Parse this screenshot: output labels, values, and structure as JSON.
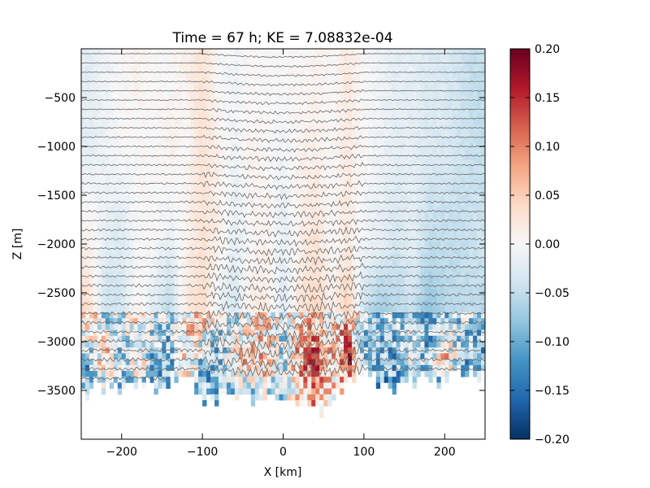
{
  "chart_data": {
    "type": "heatmap",
    "title": "Time = 67 h; KE = 7.08832e-04",
    "xlabel": "X [km]",
    "ylabel": "Z [m]",
    "xlim": [
      -250,
      250
    ],
    "ylim": [
      -4000,
      0
    ],
    "x_ticks": [
      -200,
      -100,
      0,
      100,
      200
    ],
    "x_tick_labels": [
      "−200",
      "−100",
      "0",
      "100",
      "200"
    ],
    "y_ticks": [
      -500,
      -1000,
      -1500,
      -2000,
      -2500,
      -3000,
      -3500
    ],
    "y_tick_labels": [
      "−500",
      "−1000",
      "−1500",
      "−2000",
      "−2500",
      "−3000",
      "−3500"
    ],
    "colorbar": {
      "colormap": "RdBu_r",
      "range": [
        -0.2,
        0.2
      ],
      "ticks": [
        0.2,
        0.15,
        0.1,
        0.05,
        0.0,
        -0.05,
        -0.1,
        -0.15,
        -0.2
      ],
      "tick_labels": [
        "0.20",
        "0.15",
        "0.10",
        "0.05",
        "0.00",
        "−0.05",
        "−0.10",
        "−0.15",
        "−0.20"
      ],
      "colors": [
        "#053061",
        "#2166ac",
        "#4393c3",
        "#92c5de",
        "#d1e5f0",
        "#f7f7f7",
        "#fddbc7",
        "#f4a582",
        "#d6604d",
        "#b2182b",
        "#67001f"
      ]
    },
    "field": {
      "x_centers_km": [
        -240,
        -220,
        -200,
        -180,
        -160,
        -140,
        -120,
        -100,
        -80,
        -60,
        -40,
        -20,
        0,
        20,
        40,
        60,
        80,
        100,
        120,
        140,
        160,
        180,
        200,
        220,
        240
      ],
      "z_levels_m": [
        -250,
        -1000,
        -2000,
        -2800,
        -3200,
        -3500
      ],
      "values": [
        [
          -0.02,
          -0.01,
          0.0,
          0.01,
          0.0,
          0.0,
          0.01,
          0.03,
          0.0,
          -0.01,
          0.0,
          0.0,
          0.0,
          0.0,
          0.01,
          0.0,
          0.02,
          0.0,
          -0.01,
          -0.02,
          -0.02,
          -0.03,
          -0.03,
          -0.04,
          -0.05
        ],
        [
          -0.02,
          -0.01,
          0.0,
          0.0,
          0.0,
          0.01,
          0.0,
          0.03,
          0.01,
          -0.01,
          0.01,
          0.0,
          -0.01,
          0.01,
          0.01,
          0.0,
          0.02,
          0.0,
          -0.01,
          -0.02,
          -0.02,
          -0.03,
          -0.03,
          -0.04,
          -0.05
        ],
        [
          0.01,
          -0.02,
          -0.03,
          0.0,
          0.0,
          -0.02,
          0.01,
          0.03,
          0.01,
          -0.02,
          0.0,
          0.01,
          -0.02,
          0.01,
          0.03,
          0.0,
          0.02,
          -0.01,
          -0.02,
          -0.04,
          -0.02,
          -0.05,
          -0.05,
          -0.05,
          -0.04
        ],
        [
          0.04,
          -0.05,
          -0.04,
          0.01,
          -0.03,
          -0.06,
          0.02,
          0.04,
          -0.02,
          -0.04,
          0.02,
          0.02,
          -0.03,
          0.03,
          0.05,
          0.01,
          0.06,
          -0.05,
          -0.08,
          -0.06,
          -0.05,
          -0.09,
          -0.06,
          -0.05,
          -0.06
        ],
        [
          -0.08,
          0.06,
          -0.06,
          0.03,
          -0.09,
          -0.1,
          0.05,
          -0.07,
          -0.09,
          0.02,
          0.05,
          0.05,
          -0.07,
          0.09,
          0.12,
          0.05,
          0.16,
          -0.08,
          -0.1,
          -0.1,
          0.0,
          -0.1,
          0.08,
          -0.09,
          -0.1
        ],
        [
          -0.1,
          -0.03,
          -0.1,
          -0.05,
          -0.08,
          -0.06,
          -0.04,
          -0.09,
          -0.08,
          -0.05,
          -0.05,
          -0.03,
          -0.05,
          0.03,
          0.07,
          0.02,
          0.05,
          -0.08,
          -0.1,
          -0.1,
          -0.06,
          -0.09,
          -0.1,
          -0.11,
          -0.1
        ]
      ],
      "bottom_depth_m": [
        -3500,
        -3450,
        -3500,
        -3450,
        -3480,
        -3400,
        -3300,
        -3600,
        -3550,
        -3550,
        -3600,
        -3550,
        -3600,
        -3650,
        -3750,
        -3600,
        -3400,
        -3350,
        -3400,
        -3450,
        -3450,
        -3400,
        -3450,
        -3300,
        -3350
      ]
    },
    "density_contours": {
      "count": 36,
      "top_m": -50,
      "spacing_m": 95,
      "color": "#666666"
    }
  }
}
